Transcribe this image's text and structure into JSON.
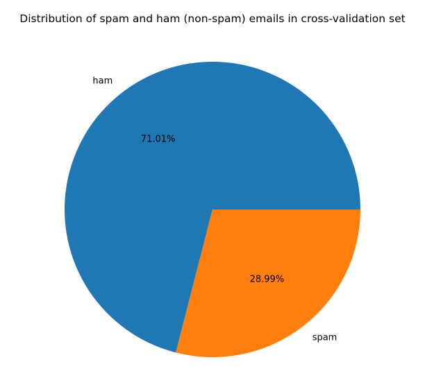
{
  "chart_data": {
    "type": "pie",
    "title": "Distribution of spam and ham (non-spam) emails in cross-validation set",
    "categories": [
      "ham",
      "spam"
    ],
    "values": [
      71.01,
      28.99
    ],
    "percent_labels": [
      "71.01%",
      "28.99%"
    ],
    "colors": [
      "#1f77b4",
      "#ff7f0e"
    ],
    "start_angle": 0,
    "direction": "counterclockwise",
    "legend": "none"
  }
}
